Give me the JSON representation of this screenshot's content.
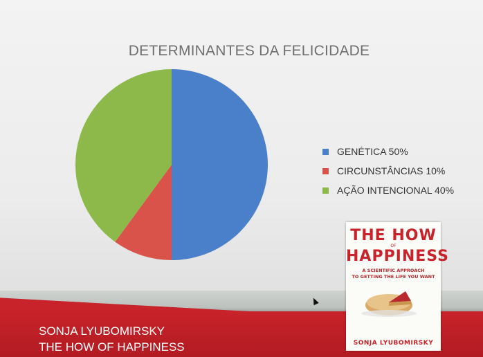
{
  "slide": {
    "title": "DETERMINANTES DA FELICIDADE",
    "footer": {
      "author": "SONJA LYUBOMIRSKY",
      "book": "THE HOW OF HAPPINESS"
    }
  },
  "book_cover": {
    "title_line1": "THE HOW",
    "title_of": "OF",
    "title_line2": "HAPPINESS",
    "subtitle_line1": "A SCIENTIFIC APPROACH",
    "subtitle_line2": "TO GETTING THE LIFE YOU WANT",
    "author": "SONJA LYUBOMIRSKY",
    "accent_color": "#c8232a"
  },
  "chart_data": {
    "type": "pie",
    "title": "DETERMINANTES DA FELICIDADE",
    "legend_position": "right",
    "slices": [
      {
        "label": "GENÉTICA 50%",
        "value": 50,
        "color": "#4a7fc9"
      },
      {
        "label": "CIRCUNSTÂNCIAS 10%",
        "value": 10,
        "color": "#d9534a"
      },
      {
        "label": "AÇÃO INTENCIONAL 40%",
        "value": 40,
        "color": "#8db94a"
      }
    ]
  }
}
